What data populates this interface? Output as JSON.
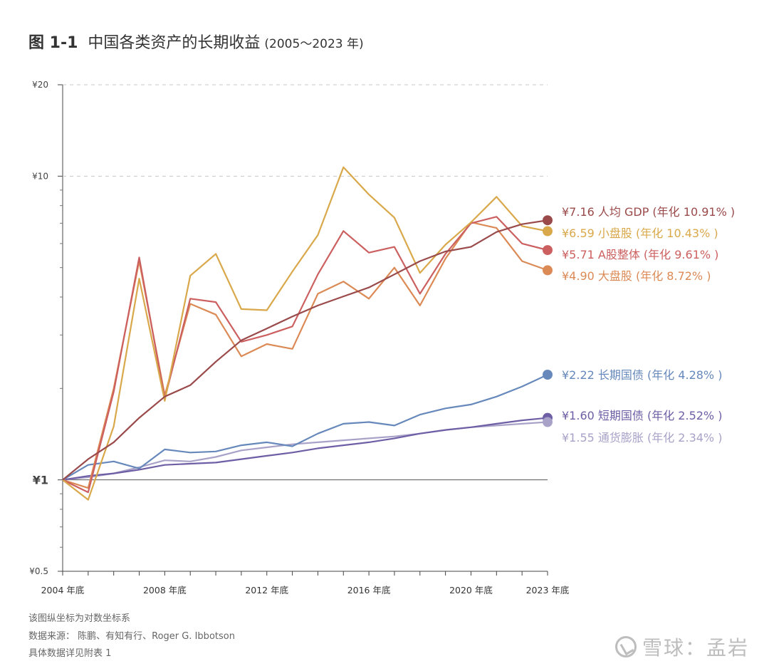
{
  "header": {
    "figure_number": "图 1-1",
    "title": "中国各类资产的长期收益",
    "subtitle": "(2005～2023 年)"
  },
  "footnotes": {
    "line1": "该图纵坐标为对数坐标系",
    "line2": "数据来源： 陈鹏、有知有行、Roger G. Ibbotson",
    "line3": "具体数据详见附表 1"
  },
  "watermark": {
    "logo_text": "雪球：孟岩"
  },
  "chart_data": {
    "type": "line",
    "y_scale": "log",
    "ylim": [
      0.5,
      20
    ],
    "y_ticks": [
      {
        "value": 0.5,
        "label": "¥0.5"
      },
      {
        "value": 1,
        "label": "¥1"
      },
      {
        "value": 10,
        "label": "¥10"
      },
      {
        "value": 20,
        "label": "¥20"
      }
    ],
    "x": [
      2004,
      2005,
      2006,
      2007,
      2008,
      2009,
      2010,
      2011,
      2012,
      2013,
      2014,
      2015,
      2016,
      2017,
      2018,
      2019,
      2020,
      2021,
      2022,
      2023
    ],
    "x_ticks": [
      {
        "value": 2004,
        "label": "2004 年底"
      },
      {
        "value": 2008,
        "label": "2008 年底"
      },
      {
        "value": 2012,
        "label": "2012 年底"
      },
      {
        "value": 2016,
        "label": "2016 年底"
      },
      {
        "value": 2020,
        "label": "2020 年底"
      },
      {
        "value": 2023,
        "label": "2023 年底"
      }
    ],
    "grid": "horizontal dashed at ¥10 and ¥20",
    "series": [
      {
        "name": "人均GDP",
        "label": "¥7.16 人均 GDP (年化 10.91% )",
        "color": "#9a4a4a",
        "values": [
          1,
          1.17,
          1.33,
          1.6,
          1.88,
          2.05,
          2.45,
          2.88,
          3.15,
          3.45,
          3.75,
          4.02,
          4.3,
          4.75,
          5.25,
          5.65,
          5.85,
          6.55,
          6.95,
          7.16
        ]
      },
      {
        "name": "小盘股",
        "label": "¥6.59 小盘股 (年化 10.43% )",
        "color": "#d9a84a",
        "values": [
          1,
          0.86,
          1.5,
          4.6,
          1.82,
          4.7,
          5.55,
          3.65,
          3.62,
          4.85,
          6.4,
          10.7,
          8.7,
          7.3,
          4.8,
          5.95,
          7.05,
          8.55,
          6.85,
          6.59
        ]
      },
      {
        "name": "A股整体",
        "label": "¥5.71 A股整体 (年化 9.61% )",
        "color": "#cc5f5f",
        "values": [
          1,
          0.91,
          1.95,
          5.4,
          1.85,
          3.95,
          3.85,
          2.85,
          3.0,
          3.2,
          4.75,
          6.6,
          5.6,
          5.85,
          4.1,
          5.55,
          7.0,
          7.35,
          6.0,
          5.71
        ]
      },
      {
        "name": "大盘股",
        "label": "¥4.90 大盘股 (年化 8.72% )",
        "color": "#dc8a55",
        "values": [
          1,
          0.94,
          2.0,
          5.25,
          1.9,
          3.8,
          3.5,
          2.55,
          2.8,
          2.7,
          4.1,
          4.5,
          3.95,
          5.0,
          3.75,
          5.35,
          7.05,
          6.75,
          5.25,
          4.9
        ]
      },
      {
        "name": "长期国债",
        "label": "¥2.22 长期国债 (年化 4.28% )",
        "color": "#6688bb",
        "values": [
          1,
          1.12,
          1.15,
          1.09,
          1.26,
          1.23,
          1.24,
          1.3,
          1.33,
          1.29,
          1.42,
          1.53,
          1.55,
          1.51,
          1.64,
          1.72,
          1.77,
          1.88,
          2.03,
          2.22
        ]
      },
      {
        "name": "短期国债",
        "label": "¥1.60 短期国债 (年化 2.52% )",
        "color": "#6e5ea5",
        "values": [
          1,
          1.03,
          1.05,
          1.08,
          1.12,
          1.13,
          1.14,
          1.17,
          1.2,
          1.23,
          1.27,
          1.3,
          1.33,
          1.37,
          1.42,
          1.46,
          1.49,
          1.53,
          1.57,
          1.6
        ]
      },
      {
        "name": "通货膨胀",
        "label": "¥1.55 通货膨胀 (年化 2.34% )",
        "color": "#a9a2c8",
        "values": [
          1,
          1.02,
          1.05,
          1.1,
          1.16,
          1.15,
          1.19,
          1.25,
          1.28,
          1.31,
          1.33,
          1.35,
          1.37,
          1.39,
          1.42,
          1.46,
          1.49,
          1.51,
          1.53,
          1.55
        ]
      }
    ]
  }
}
